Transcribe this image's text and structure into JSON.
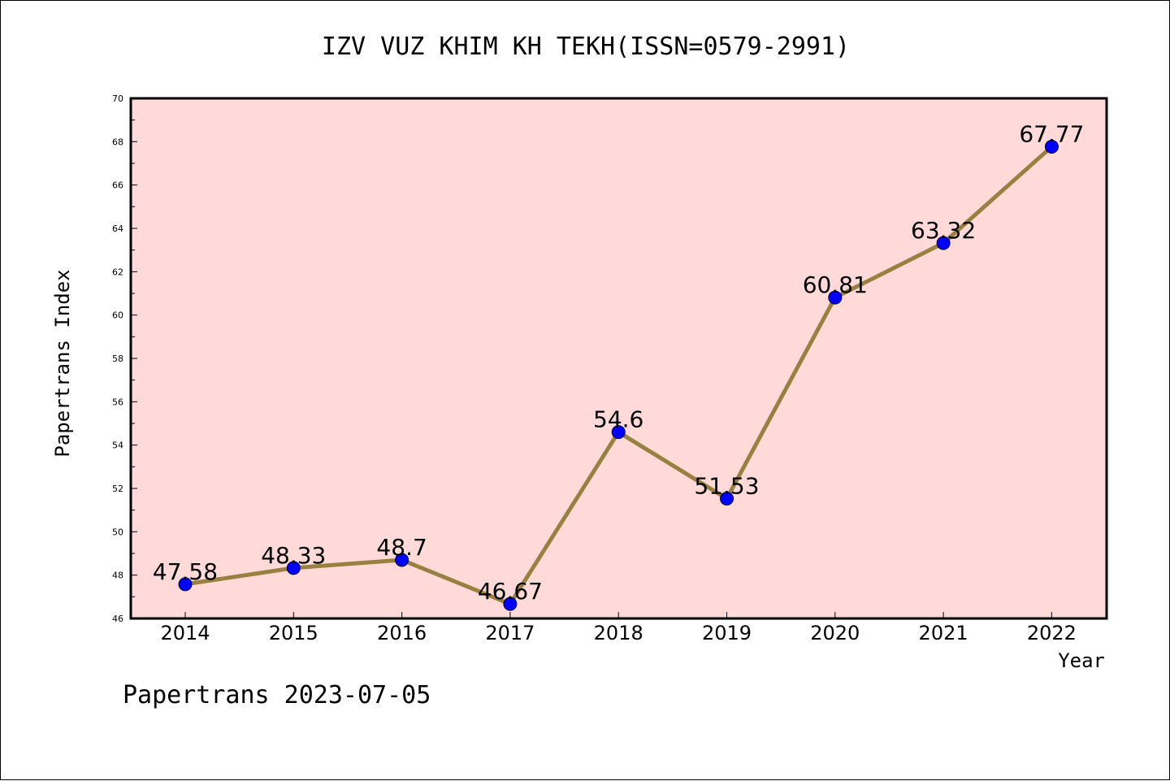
{
  "chart_data": {
    "type": "line",
    "title": "IZV VUZ KHIM KH TEKH(ISSN=0579-2991)",
    "xlabel": "Year",
    "ylabel": "Papertrans Index",
    "x": [
      "2014",
      "2015",
      "2016",
      "2017",
      "2018",
      "2019",
      "2020",
      "2021",
      "2022"
    ],
    "values": [
      47.58,
      48.33,
      48.7,
      46.67,
      54.6,
      51.53,
      60.81,
      63.32,
      67.77
    ],
    "data_labels": [
      "47.58",
      "48.33",
      "48.7",
      "46.67",
      "54.6",
      "51.53",
      "60.81",
      "63.32",
      "67.77"
    ],
    "ylim": [
      46,
      70
    ],
    "yticks": [
      "46",
      "48",
      "50",
      "52",
      "54",
      "56",
      "58",
      "60",
      "62",
      "64",
      "66",
      "68",
      "70"
    ],
    "grid": false,
    "legend": "none",
    "footer": "Papertrans 2023-07-05",
    "colors": {
      "plot_background": "#ffdad8",
      "line": "#9a8040",
      "marker": "#0000ff",
      "axis": "#000000"
    }
  }
}
